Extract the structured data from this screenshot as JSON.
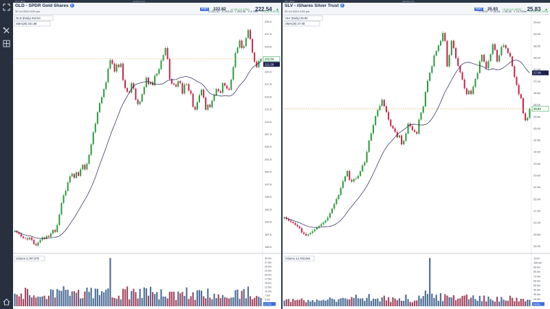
{
  "colors": {
    "up": "#2c9a3c",
    "down": "#c2264a",
    "sma": "#1a1f4e",
    "vol_up": "#4d6e96",
    "vol_down": "#a3455e",
    "accent": "#3f6fd8",
    "dotted": "#e0a24a"
  },
  "rail_icons": [
    "expand-icon",
    "tools-icon",
    "layout-icon",
    "home-icon"
  ],
  "panels": [
    {
      "id": "gld",
      "topbar": {
        "left": "W d • Bars",
        "site": "barchart.com"
      },
      "header": {
        "title": "GLD - SPDR Gold Shares",
        "date": "30 Jul 2024 3:59 pm",
        "post_badge": "POST",
        "post_price": "222.82",
        "post_change": "+0.28 (+0.13%)",
        "last": "222.54",
        "last_arrow": "▲",
        "ohlc": {
          "o_label": "O",
          "o": "221.41",
          "h_label": "H",
          "h": "222.92",
          "l_label": "L",
          "l": "220.36",
          "v_label": "V",
          "v": "4.76m",
          "chg": "+2.22 (+1.01%)"
        }
      },
      "legend": {
        "price": "GLD (Daily) 222.54",
        "sma": "SMA(20) 221.58",
        "volume": "Volume 4,767,579"
      },
      "price_axis": {
        "ticks": [
          "230.0",
          "227.5",
          "225.0",
          "222.5",
          "220.0",
          "217.5",
          "215.0",
          "212.5",
          "210.0",
          "207.5",
          "205.0",
          "202.5",
          "200.0",
          "197.5",
          "195.0",
          "192.5",
          "190.0",
          "187.5",
          "185.0"
        ],
        "last_tag": "222.54",
        "sma_tag": "221.58"
      },
      "volume_axis": {
        "ticks": [
          "30.0m",
          "27.5m",
          "25.0m",
          "22.5m",
          "20.0m",
          "17.5m",
          "15.0m",
          "12.5m",
          "10.0m",
          "7.5m",
          "5.0m",
          "2.5m"
        ],
        "last_tag": "4.77m"
      }
    },
    {
      "id": "slv",
      "topbar": {
        "left": "W d • Bars",
        "site": "barchart.com"
      },
      "header": {
        "title": "SLV - iShares Silver Trust",
        "date": "30 Jul 2024 3:59 pm",
        "post_badge": "POST",
        "post_price": "25.93",
        "post_change": "+0.10 (+0.39%)",
        "last": "25.83",
        "last_arrow": "▲",
        "ohlc": {
          "o_label": "O",
          "o": "25.57",
          "h_label": "H",
          "h": "25.94",
          "l_label": "L",
          "l": "25.33",
          "v_label": "V",
          "v": "14.794m",
          "chg": "+0.28 (+1.10%)"
        }
      },
      "legend": {
        "price": "SLV (Daily) 25.83",
        "sma": "SMA(20) 27.08",
        "volume": "Volume 14,793,094"
      },
      "price_axis": {
        "ticks": [
          "29.50",
          "29.00",
          "28.50",
          "28.00",
          "27.50",
          "27.00",
          "26.50",
          "26.00",
          "25.50",
          "25.00",
          "24.50",
          "24.00",
          "23.50",
          "23.00",
          "22.50",
          "22.00",
          "21.50",
          "21.00",
          "20.50",
          "20.00"
        ],
        "last_tag": "25.83",
        "sma_tag": "27.08"
      },
      "volume_axis": {
        "ticks": [
          "110m",
          "100.0m",
          "90.0m",
          "80.0m",
          "70.0m",
          "60.0m",
          "50.0m",
          "40.0m",
          "30.0m",
          "20.0m",
          "10.0m"
        ],
        "last_tag": "14.8m"
      }
    }
  ],
  "chart_data": [
    {
      "type": "candlestick",
      "title": "GLD - SPDR Gold Shares",
      "ylim": [
        184,
        231
      ],
      "last": 222.54,
      "sma_period": 20,
      "close": [
        188.2,
        187.9,
        187.6,
        187.1,
        186.8,
        186.7,
        186.5,
        186.9,
        186.4,
        185.6,
        185.3,
        185.9,
        186.4,
        186.9,
        186.6,
        187.2,
        187.0,
        187.7,
        188.4,
        188.0,
        189.4,
        191.5,
        193.8,
        195.3,
        196.2,
        197.9,
        199.1,
        199.6,
        198.8,
        199.9,
        199.2,
        200.5,
        201.4,
        200.5,
        201.6,
        203.4,
        205.5,
        207.9,
        209.6,
        211.9,
        213.7,
        214.9,
        216.5,
        217.9,
        220.6,
        222.3,
        221.6,
        220.0,
        221.4,
        220.9,
        221.6,
        218.3,
        216.7,
        216.0,
        215.8,
        217.7,
        216.6,
        214.4,
        213.5,
        214.0,
        215.5,
        216.9,
        218.8,
        217.5,
        217.9,
        217.3,
        219.2,
        219.6,
        220.5,
        222.2,
        223.3,
        224.7,
        222.5,
        218.5,
        217.6,
        217.4,
        217.0,
        218.1,
        217.7,
        215.6,
        217.4,
        217.5,
        216.2,
        215.6,
        213.0,
        212.4,
        213.9,
        215.3,
        216.4,
        214.8,
        212.4,
        213.4,
        212.9,
        214.2,
        215.3,
        216.5,
        216.1,
        215.8,
        217.7,
        217.2,
        216.6,
        216.4,
        218.4,
        220.9,
        223.7,
        224.8,
        226.2,
        224.7,
        225.1,
        226.7,
        228.3,
        226.5,
        223.8,
        222.0,
        220.9,
        222.1,
        222.5
      ],
      "volume": [
        7.3,
        6.8,
        5.7,
        7.4,
        4.2,
        10.7,
        10.0,
        6.4,
        5.1,
        6.3,
        5.0,
        5.6,
        5.4,
        5.7,
        6.1,
        4.2,
        6.1,
        9.8,
        9.5,
        5.1,
        10.0,
        9.2,
        8.9,
        11.6,
        9.5,
        9.6,
        6.1,
        8.6,
        8.7,
        7.8,
        9.5,
        4.5,
        4.7,
        8.5,
        10.8,
        8.4,
        10.7,
        4.6,
        10.2,
        10.1,
        6.5,
        8.7,
        8.1,
        9.6,
        10.3,
        28.0,
        5.1,
        4.8,
        4.3,
        6.1,
        4.0,
        10.1,
        9.8,
        11.4,
        4.0,
        8.8,
        10.1,
        8.2,
        4.5,
        10.1,
        4.8,
        10.9,
        10.4,
        6.1,
        11.3,
        8.2,
        7.1,
        8.2,
        4.0,
        9.8,
        5.6,
        5.6,
        4.5,
        8.4,
        8.4,
        8.4,
        3.6,
        8.5,
        7.5,
        8.3,
        6.0,
        10.9,
        4.2,
        5.8,
        8.1,
        3.7,
        9.2,
        9.4,
        9.0,
        5.8,
        4.6,
        10.2,
        5.0,
        4.0,
        7.2,
        4.7,
        6.9,
        4.7,
        6.5,
        5.3,
        4.9,
        4.5,
        5.0,
        5.2,
        9.3,
        9.7,
        4.3,
        8.9,
        10.0,
        4.6,
        11.4,
        5.8,
        4.0,
        4.9,
        6.0,
        5.5,
        4.8
      ]
    },
    {
      "type": "candlestick",
      "title": "SLV - iShares Silver Trust",
      "ylim": [
        19.75,
        29.75
      ],
      "last": 25.83,
      "sma_period": 20,
      "close": [
        21.22,
        21.15,
        21.08,
        21.03,
        20.98,
        20.9,
        20.84,
        20.76,
        20.58,
        20.52,
        20.45,
        20.5,
        20.56,
        20.63,
        20.71,
        20.79,
        20.85,
        20.93,
        21.0,
        21.08,
        21.21,
        21.4,
        21.59,
        21.79,
        22.0,
        22.17,
        22.47,
        22.75,
        22.96,
        23.19,
        22.81,
        22.74,
        22.85,
        22.88,
        22.98,
        23.18,
        23.43,
        23.56,
        24.0,
        24.48,
        24.79,
        25.14,
        25.52,
        25.78,
        25.95,
        26.21,
        25.94,
        25.69,
        25.37,
        25.1,
        25.0,
        24.85,
        24.62,
        24.7,
        24.32,
        24.47,
        24.78,
        25.2,
        25.09,
        24.93,
        24.85,
        24.77,
        25.37,
        25.67,
        25.93,
        26.54,
        27.02,
        27.36,
        27.64,
        28.09,
        28.28,
        28.52,
        28.71,
        29.05,
        28.71,
        27.63,
        28.11,
        28.72,
        28.41,
        27.98,
        27.65,
        27.38,
        27.07,
        26.7,
        26.45,
        26.6,
        26.46,
        26.77,
        27.1,
        27.35,
        27.84,
        28.12,
        27.83,
        27.55,
        27.85,
        28.15,
        28.57,
        28.33,
        27.84,
        28.1,
        28.46,
        28.53,
        28.4,
        28.2,
        28.05,
        27.64,
        27.18,
        26.84,
        26.45,
        26.28,
        25.64,
        25.34,
        25.45,
        25.83
      ],
      "volume": [
        13.1,
        16.1,
        16.8,
        9.5,
        17.0,
        13.8,
        15.0,
        15.2,
        18.1,
        14.0,
        9.2,
        14.7,
        11.1,
        14.4,
        10.3,
        15.7,
        13.3,
        13.2,
        15.0,
        12.9,
        15.5,
        20.2,
        17.7,
        15.9,
        10.2,
        16.2,
        18.4,
        19.4,
        18.3,
        16.6,
        15.8,
        21.4,
        19.3,
        26.8,
        18.5,
        17.9,
        18.3,
        12.5,
        19.4,
        28.2,
        12.6,
        17.8,
        16.9,
        18.0,
        10.9,
        20.5,
        24.4,
        13.6,
        20.9,
        10.1,
        20.7,
        18.0,
        14.1,
        18.3,
        12.7,
        12.7,
        27.0,
        16.5,
        10.0,
        9.1,
        13.1,
        13.6,
        24.7,
        18.1,
        23.7,
        36.4,
        28.4,
        112.0,
        29.1,
        19.3,
        26.6,
        12.7,
        30.3,
        11.9,
        27.9,
        24.6,
        21.0,
        20.3,
        25.5,
        13.9,
        17.5,
        18.7,
        23.9,
        24.7,
        27.2,
        16.0,
        19.8,
        25.2,
        16.6,
        12.6,
        23.9,
        12.0,
        24.8,
        11.1,
        22.4,
        16.7,
        13.6,
        10.7,
        21.9,
        10.7,
        21.5,
        15.2,
        13.2,
        12.6,
        24.3,
        19.7,
        11.5,
        19.8,
        11.2,
        17.4,
        17.0,
        11.5,
        15.0,
        14.8
      ]
    }
  ]
}
